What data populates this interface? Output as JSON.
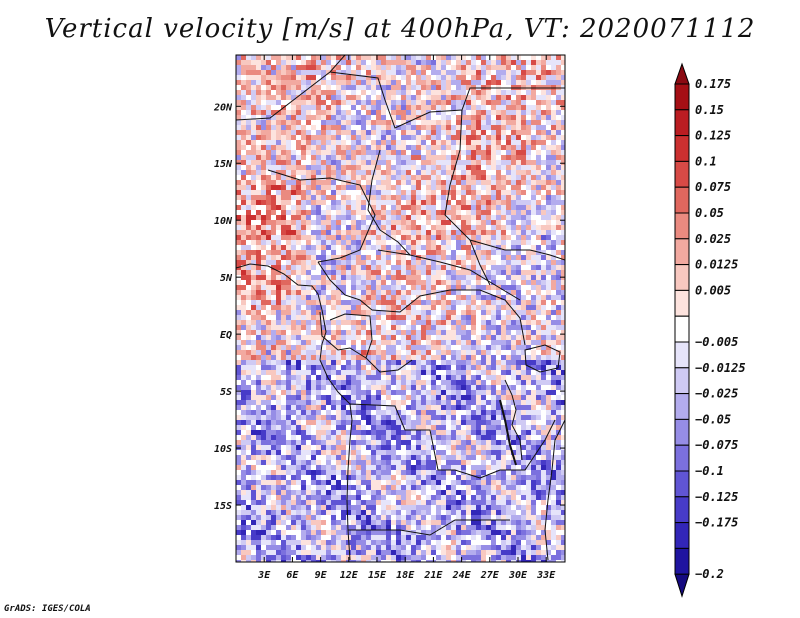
{
  "title": "Vertical velocity [m/s] at 400hPa, VT: 2020071112",
  "credit": "GrADS: IGES/COLA",
  "map": {
    "lon_range": [
      0,
      35
    ],
    "lat_range": [
      -20,
      24.5
    ],
    "lat_ticks": [
      {
        "value": 20,
        "label": "20N"
      },
      {
        "value": 15,
        "label": "15N"
      },
      {
        "value": 10,
        "label": "10N"
      },
      {
        "value": 5,
        "label": "5N"
      },
      {
        "value": 0,
        "label": "EQ"
      },
      {
        "value": -5,
        "label": "5S"
      },
      {
        "value": -10,
        "label": "10S"
      },
      {
        "value": -15,
        "label": "15S"
      }
    ],
    "lon_ticks": [
      {
        "value": 3,
        "label": "3E"
      },
      {
        "value": 6,
        "label": "6E"
      },
      {
        "value": 9,
        "label": "9E"
      },
      {
        "value": 12,
        "label": "12E"
      },
      {
        "value": 15,
        "label": "15E"
      },
      {
        "value": 18,
        "label": "18E"
      },
      {
        "value": 21,
        "label": "21E"
      },
      {
        "value": 24,
        "label": "24E"
      },
      {
        "value": 27,
        "label": "27E"
      },
      {
        "value": 30,
        "label": "30E"
      },
      {
        "value": 33,
        "label": "33E"
      }
    ]
  },
  "colorbar": {
    "levels": [
      {
        "label": "0.175",
        "color": "#a50f15"
      },
      {
        "label": "0.15",
        "color": "#bb1d22"
      },
      {
        "label": "0.125",
        "color": "#cb3030"
      },
      {
        "label": "0.1",
        "color": "#d74a46"
      },
      {
        "label": "0.075",
        "color": "#e0675e"
      },
      {
        "label": "0.05",
        "color": "#ea8a80"
      },
      {
        "label": "0.025",
        "color": "#f2a9a0"
      },
      {
        "label": "0.0125",
        "color": "#f8c8c0"
      },
      {
        "label": "0.005",
        "color": "#fde3de"
      },
      {
        "label": "",
        "color": "#ffffff"
      },
      {
        "label": "−0.005",
        "color": "#e6e4fa"
      },
      {
        "label": "−0.0125",
        "color": "#cfcaf4"
      },
      {
        "label": "−0.025",
        "color": "#b3acee"
      },
      {
        "label": "−0.05",
        "color": "#968de6"
      },
      {
        "label": "−0.075",
        "color": "#7b70de"
      },
      {
        "label": "−0.1",
        "color": "#6055d4"
      },
      {
        "label": "−0.125",
        "color": "#473bc8"
      },
      {
        "label": "−0.175",
        "color": "#3226b8"
      },
      {
        "label": "−0.2",
        "color": "#1f14a0"
      }
    ],
    "top_arrow_color": "#8b0a12",
    "bottom_arrow_color": "#150a80"
  }
}
